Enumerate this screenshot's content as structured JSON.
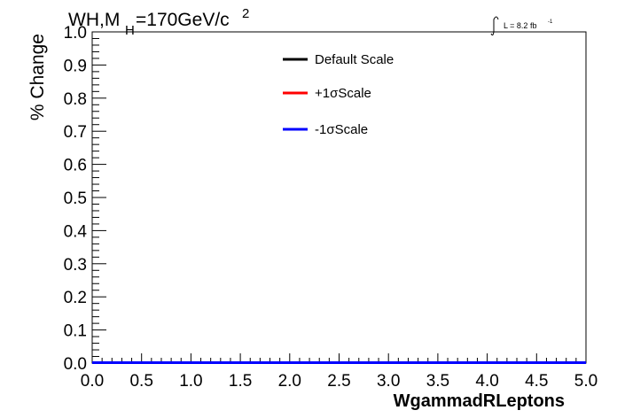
{
  "chart_data": {
    "type": "line",
    "title_text": "WH,M",
    "title_sub": "H",
    "title_rest": "=170GeV/c",
    "title_sup": "2",
    "lumi_text": "L = 8.2 fb",
    "lumi_sup": "-1",
    "xlabel": "WgammadRLeptons",
    "ylabel": "% Change",
    "xlim": [
      0.0,
      5.0
    ],
    "ylim": [
      0.0,
      1.0
    ],
    "x_ticks": [
      "0.0",
      "0.5",
      "1.0",
      "1.5",
      "2.0",
      "2.5",
      "3.0",
      "3.5",
      "4.0",
      "4.5",
      "5.0"
    ],
    "y_ticks": [
      "0.0",
      "0.1",
      "0.2",
      "0.3",
      "0.4",
      "0.5",
      "0.6",
      "0.7",
      "0.8",
      "0.9",
      "1.0"
    ],
    "grid": false,
    "legend_position": "top-center",
    "series": [
      {
        "name": "Default Scale",
        "color": "#000000",
        "x": [
          0.0,
          5.0
        ],
        "y": [
          0.0,
          0.0
        ]
      },
      {
        "name": "+1σScale",
        "color": "#ff0000",
        "x": [
          0.0,
          5.0
        ],
        "y": [
          0.0,
          0.0
        ]
      },
      {
        "name": "-1σScale",
        "color": "#0000ff",
        "x": [
          0.0,
          5.0
        ],
        "y": [
          0.0,
          0.0
        ]
      }
    ]
  }
}
